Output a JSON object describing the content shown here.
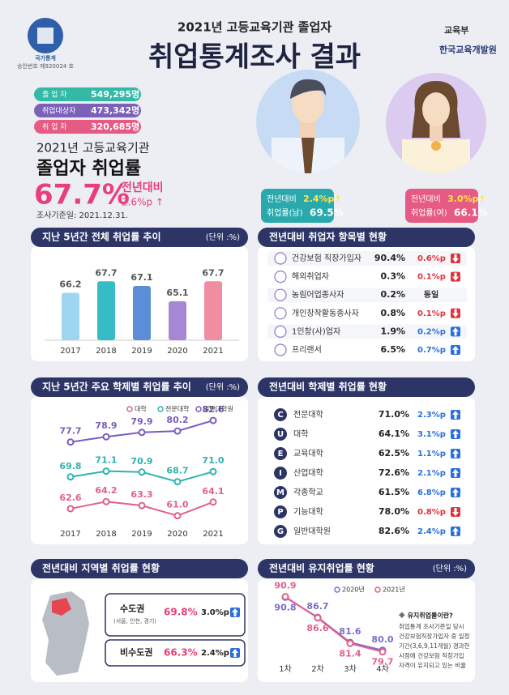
{
  "header": {
    "agency_mark": "국가통계",
    "approval": "승인번호 제920024 호",
    "subtitle": "2021년 고등교육기관 졸업자",
    "title": "취업통계조사 결과",
    "ministry": "교육부",
    "institute": "한국교육개발원"
  },
  "summary": [
    {
      "label": "졸 업 자",
      "value": "549,295명",
      "color": "#33b9a6"
    },
    {
      "label": "취업대상자",
      "value": "473,342명",
      "color": "#7b62b8"
    },
    {
      "label": "취 업 자",
      "value": "320,685명",
      "color": "#e65b83"
    }
  ],
  "headline": {
    "line1": "2021년 고등교육기관",
    "line2": "졸업자 취업률",
    "rate": "67.7%",
    "change_label": "전년대비",
    "change": "2.6%p ↑",
    "survey_date": "조사기준일: 2021.12.31."
  },
  "gender": [
    {
      "change_label": "전년대비",
      "change": "2.4%p↑",
      "rate_label": "취업률(남)",
      "rate": "69.5%",
      "color": "#2aa9ad"
    },
    {
      "change_label": "전년대비",
      "change": "3.0%p↑",
      "rate_label": "취업률(여)",
      "rate": "66.1%",
      "color": "#e65b83"
    }
  ],
  "items": {
    "title": "전년대비 취업자 항목별 현황",
    "rows": [
      {
        "label": "건강보험 직장가입자",
        "rate": "90.4%",
        "change": "0.6%p",
        "trend": "down"
      },
      {
        "label": "해외취업자",
        "rate": "0.3%",
        "change": "0.1%p",
        "trend": "down"
      },
      {
        "label": "농림어업종사자",
        "rate": "0.2%",
        "change": "동일"
      },
      {
        "label": "개인창작활동종사자",
        "rate": "0.8%",
        "change": "0.1%p",
        "trend": "down"
      },
      {
        "label": "1인창(사)업자",
        "rate": "1.9%",
        "change": "0.2%p",
        "trend": "up"
      },
      {
        "label": "프리랜서",
        "rate": "6.5%",
        "change": "0.7%p",
        "trend": "up"
      }
    ]
  },
  "schools": {
    "title": "전년대비 학제별 취업률 현황",
    "rows": [
      {
        "letter": "C",
        "label": "전문대학",
        "rate": "71.0%",
        "change": "2.3%p",
        "trend": "up"
      },
      {
        "letter": "U",
        "label": "대학",
        "rate": "64.1%",
        "change": "3.1%p",
        "trend": "up"
      },
      {
        "letter": "E",
        "label": "교육대학",
        "rate": "62.5%",
        "change": "1.1%p",
        "trend": "up"
      },
      {
        "letter": "I",
        "label": "산업대학",
        "rate": "72.6%",
        "change": "2.1%p",
        "trend": "up"
      },
      {
        "letter": "M",
        "label": "각종학교",
        "rate": "61.5%",
        "change": "6.8%p",
        "trend": "up"
      },
      {
        "letter": "P",
        "label": "기능대학",
        "rate": "78.0%",
        "change": "0.8%p",
        "trend": "down"
      },
      {
        "letter": "G",
        "label": "일반대학원",
        "rate": "82.6%",
        "change": "2.4%p",
        "trend": "up"
      }
    ]
  },
  "regions": {
    "title": "전년대비 지역별 취업률 현황",
    "rows": [
      {
        "label": "수도권",
        "note": "(서울, 인천, 경기)",
        "rate": "69.8%",
        "change": "3.0%p",
        "trend": "up"
      },
      {
        "label": "비수도권",
        "rate": "66.3%",
        "change": "2.4%p",
        "trend": "up"
      }
    ]
  },
  "chart_data": [
    {
      "type": "bar",
      "title": "지난 5년간 전체 취업률 추이",
      "unit": "(단위 :%)",
      "categories": [
        "2017",
        "2018",
        "2019",
        "2020",
        "2021"
      ],
      "values": [
        66.2,
        67.7,
        67.1,
        65.1,
        67.7
      ],
      "colors": [
        "#9ed6f2",
        "#36bcc6",
        "#5b8ed6",
        "#a587d4",
        "#f08da0"
      ],
      "ylim": [
        60,
        69
      ]
    },
    {
      "type": "line",
      "title": "지난 5년간 주요 학제별 취업률 추이",
      "unit": "(단위 :%)",
      "categories": [
        "2017",
        "2018",
        "2019",
        "2020",
        "2021"
      ],
      "ylim": [
        58,
        85
      ],
      "series": [
        {
          "name": "대학",
          "color": "#e0608a",
          "values": [
            62.6,
            64.2,
            63.3,
            61.0,
            64.1
          ],
          "value_labels": [
            "62.6",
            "64.2",
            "63.3",
            "61.0",
            "64.1"
          ]
        },
        {
          "name": "전문대학",
          "color": "#2fb3ae",
          "values": [
            69.8,
            71.1,
            70.9,
            68.7,
            71.0
          ],
          "value_labels": [
            "69.8",
            "71.1",
            "70.9",
            "68.7",
            "71.0"
          ]
        },
        {
          "name": "일반대학원",
          "color": "#7a5cc0",
          "values": [
            77.7,
            78.9,
            79.9,
            80.2,
            82.6
          ]
        }
      ]
    },
    {
      "type": "line",
      "title": "전년대비 유지취업률 현황",
      "unit": "(단위 :%)",
      "categories": [
        "1차",
        "2차",
        "3차",
        "4차"
      ],
      "ylim": [
        78,
        92
      ],
      "series": [
        {
          "name": "2020년",
          "color": "#7d6cc8",
          "values": [
            90.8,
            86.7,
            81.6,
            80.0
          ],
          "value_labels": [
            "90.8",
            "86.7",
            "81.6",
            "80.0"
          ]
        },
        {
          "name": "2021년",
          "color": "#e0608a",
          "values": [
            90.9,
            86.6,
            81.4,
            79.7
          ]
        }
      ],
      "note": {
        "title": "※ 유지취업률이란?",
        "lines": [
          "취업통계 조사기준일 당시",
          "건강보험직장가입자 중 일정",
          "기간(3,6,9,11개월) 경과한",
          "시점에 건강보험 직장가입",
          "자격이 유지되고 있는 비율"
        ]
      }
    }
  ]
}
